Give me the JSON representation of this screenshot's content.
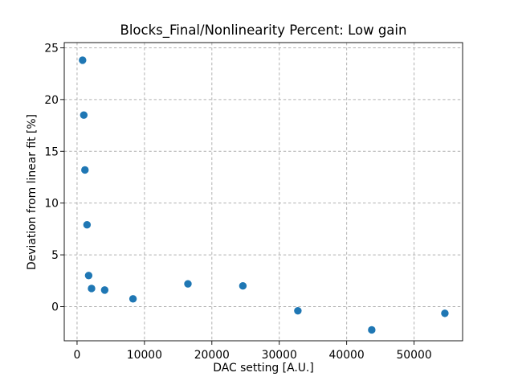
{
  "figure": {
    "background": "#ffffff"
  },
  "chart_data": {
    "type": "scatter",
    "title": "Blocks_Final/Nonlinearity Percent: Low gain",
    "xlabel": "DAC setting [A.U.]",
    "ylabel": "Deviation from linear fit [%]",
    "xlim": [
      -1900,
      57200
    ],
    "ylim": [
      -3.3,
      25.5
    ],
    "xticks": [
      0,
      10000,
      20000,
      30000,
      40000,
      50000
    ],
    "yticks": [
      0,
      5,
      10,
      15,
      20,
      25
    ],
    "grid": true,
    "grid_linestyle": "dashed",
    "legend_position": "none",
    "colors": {
      "marker": "#1f77b4",
      "grid": "#b0b0b0",
      "spine": "#000000",
      "text": "#000000"
    },
    "marker_radius_px": 4.7,
    "series": [
      {
        "x": [
          820,
          1000,
          1170,
          1480,
          1720,
          2150,
          4100,
          8300,
          16450,
          24600,
          32760,
          43720,
          54570
        ],
        "y": [
          23.8,
          18.5,
          13.2,
          7.9,
          3.0,
          1.75,
          1.6,
          0.75,
          2.2,
          2.0,
          -0.4,
          -2.25,
          -0.65
        ]
      }
    ]
  }
}
